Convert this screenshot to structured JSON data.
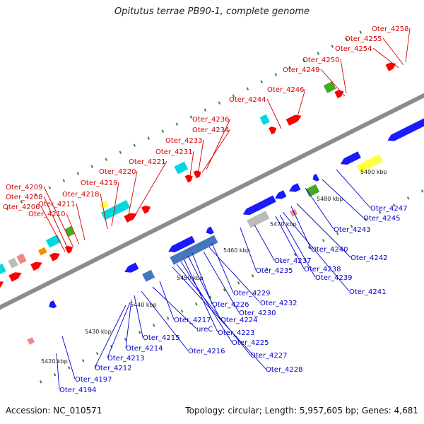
{
  "title": "Opitutus terrae PB90-1, complete genome",
  "footer": {
    "accession": "Accession: NC_010571",
    "summary": "Topology: circular; Length: 5,957,605 bp; Genes: 4,681"
  },
  "colors": {
    "backbone": "#8c8c8c",
    "dots": "#2e8b2e",
    "top_labels": "#d40000",
    "bottom_labels": "#0000cc",
    "gene_red": "#ff0000",
    "gene_blue": "#1a1aff",
    "gene_cyan": "#00d8e0",
    "gene_green": "#44aa22",
    "gene_yellow": "#ffff44",
    "gene_orange": "#ff8800",
    "gene_gray": "#bbbbbb",
    "gene_pink": "#ee8888",
    "gene_steel": "#4477bb"
  },
  "scale_labels": [
    "5420 kbp",
    "5430 kbp",
    "5440 kbp",
    "5450 kbp",
    "5460 kbp",
    "5470 kbp",
    "5480 kbp",
    "5490 kbp"
  ],
  "top_labels": [
    "Oter_4258",
    "Oter_4255",
    "Oter_4254",
    "Oter_4250",
    "Oter_4249",
    "Oter_4246",
    "Oter_4244",
    "Oter_4236",
    "Oter_4234",
    "Oter_4233",
    "Oter_4231",
    "Oter_4221",
    "Oter_4220",
    "Oter_4219",
    "Oter_4218",
    "Oter_4211",
    "Oter_4210",
    "Oter_4209",
    "Oter_4208",
    "Oter_4206"
  ],
  "bottom_labels": [
    "Oter_4247",
    "Oter_4245",
    "Oter_4243",
    "Oter_4242",
    "Oter_4240",
    "Oter_4241",
    "Oter_4239",
    "Oter_4238",
    "Oter_4237",
    "Oter_4235",
    "Oter_4229",
    "Oter_4232",
    "Oter_4230",
    "Oter_4226",
    "Oter_4224",
    "Oter_4223",
    "Oter_4225",
    "Oter_4227",
    "Oter_4228",
    "Oter_4217",
    "ureC",
    "Oter_4216",
    "Oter_4215",
    "Oter_4214",
    "Oter_4213",
    "Oter_4212",
    "Oter_4197",
    "Oter_4194"
  ]
}
